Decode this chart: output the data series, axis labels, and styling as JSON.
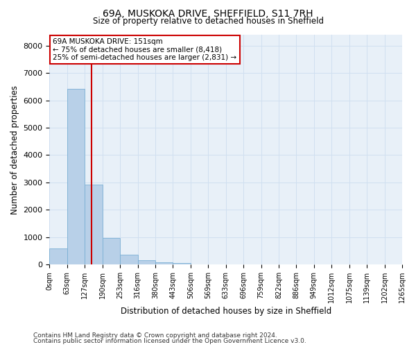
{
  "title_line1": "69A, MUSKOKA DRIVE, SHEFFIELD, S11 7RH",
  "title_line2": "Size of property relative to detached houses in Sheffield",
  "xlabel": "Distribution of detached houses by size in Sheffield",
  "ylabel": "Number of detached properties",
  "bar_color": "#b8d0e8",
  "bar_edge_color": "#7aafd4",
  "grid_color": "#d0dff0",
  "background_color": "#e8f0f8",
  "property_size_sqm": 151,
  "property_line_color": "#cc0000",
  "annotation_text": "69A MUSKOKA DRIVE: 151sqm\n← 75% of detached houses are smaller (8,418)\n25% of semi-detached houses are larger (2,831) →",
  "annotation_box_color": "#cc0000",
  "bin_labels": [
    "0sqm",
    "63sqm",
    "127sqm",
    "190sqm",
    "253sqm",
    "316sqm",
    "380sqm",
    "443sqm",
    "506sqm",
    "569sqm",
    "633sqm",
    "696sqm",
    "759sqm",
    "822sqm",
    "886sqm",
    "949sqm",
    "1012sqm",
    "1075sqm",
    "1139sqm",
    "1202sqm",
    "1265sqm"
  ],
  "bin_starts_sqm": [
    0,
    63,
    127,
    190,
    253,
    316,
    380,
    443,
    506,
    569,
    633,
    696,
    759,
    822,
    886,
    949,
    1012,
    1075,
    1139,
    1202
  ],
  "bar_heights": [
    580,
    6420,
    2920,
    970,
    350,
    150,
    90,
    55,
    0,
    0,
    0,
    0,
    0,
    0,
    0,
    0,
    0,
    0,
    0,
    0
  ],
  "ylim": [
    0,
    8400
  ],
  "yticks": [
    0,
    1000,
    2000,
    3000,
    4000,
    5000,
    6000,
    7000,
    8000
  ],
  "footer_line1": "Contains HM Land Registry data © Crown copyright and database right 2024.",
  "footer_line2": "Contains public sector information licensed under the Open Government Licence v3.0.",
  "figsize": [
    6.0,
    5.0
  ],
  "dpi": 100
}
